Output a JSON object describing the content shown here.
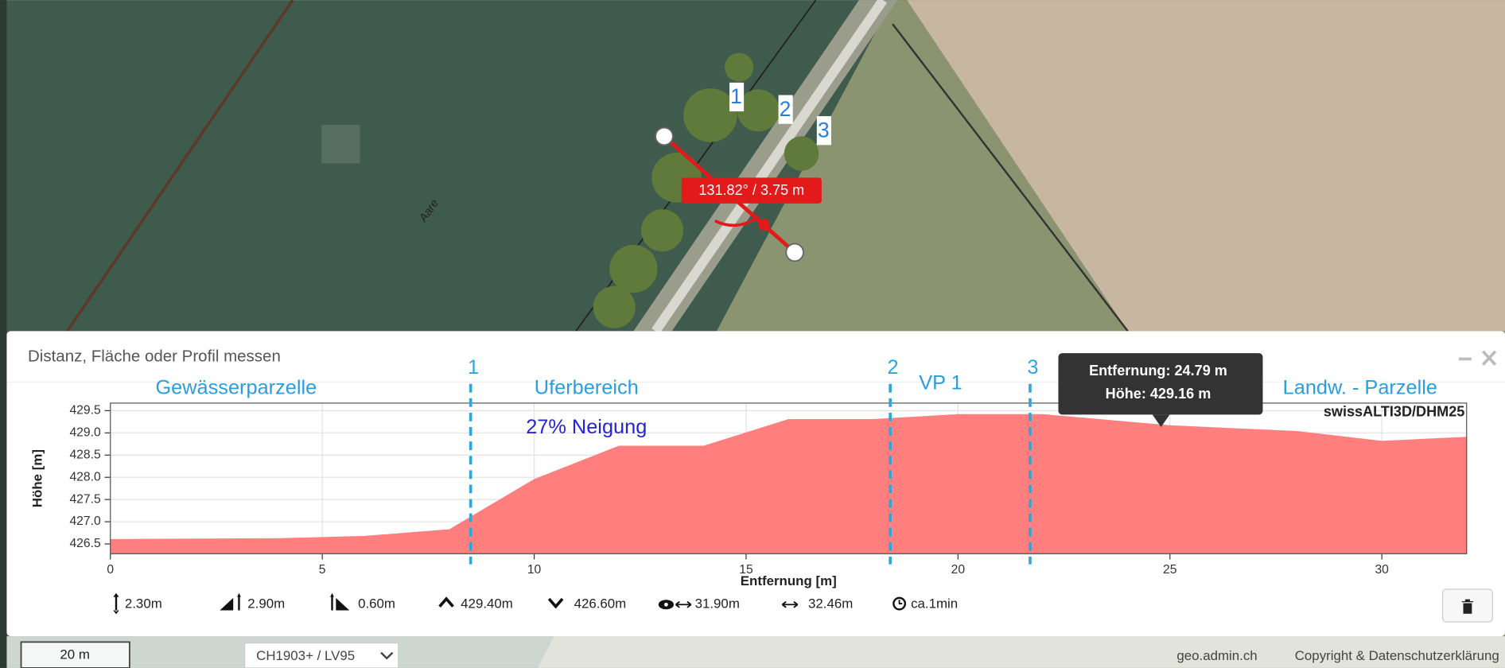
{
  "map": {
    "river_label": "Aare",
    "markers": [
      "1",
      "2",
      "3"
    ],
    "measure_label": "131.82° / 3.75 m"
  },
  "panel": {
    "title": "Distanz, Fläche oder Profil messen"
  },
  "chart_data": {
    "type": "area",
    "x_label": "Entfernung [m]",
    "y_label": "Höhe [m]",
    "source_label": "swissALTI3D/DHM25",
    "color": "#ff7f7f",
    "x": [
      0,
      4,
      6,
      8,
      10,
      12,
      14,
      16,
      18,
      20,
      22,
      25,
      28,
      30,
      32
    ],
    "values": [
      426.6,
      426.62,
      426.67,
      426.82,
      427.95,
      428.7,
      428.7,
      429.3,
      429.3,
      429.41,
      429.41,
      429.16,
      429.03,
      428.81,
      428.9
    ],
    "xlim": [
      0,
      32
    ],
    "xticks": [
      0,
      5,
      10,
      15,
      20,
      25,
      30
    ],
    "ylim": [
      426.28,
      429.67
    ],
    "yticks": [
      426.5,
      {
        "value": 427,
        "label": "427.0"
      },
      427.5,
      {
        "value": 428,
        "label": "428.0"
      },
      428.5,
      {
        "value": 429,
        "label": "429.0"
      },
      429.5
    ],
    "grid": true,
    "markers": [
      {
        "label": "1",
        "x": 8.5
      },
      {
        "label": "2",
        "x": 18.4
      },
      {
        "label": "3",
        "x": 21.7
      }
    ],
    "regions": [
      "Gewässerparzelle",
      "Uferbereich",
      "VP 1",
      "Landw. - Parzelle"
    ],
    "slope_label": "27% Neigung",
    "tooltip": {
      "x": 24.79,
      "lines": [
        "Entfernung: 24.79 m",
        "Höhe: 429.16 m"
      ]
    }
  },
  "stats": [
    "2.30m",
    "2.90m",
    "0.60m",
    "429.40m",
    "426.60m",
    "31.90m",
    "32.46m",
    "ca.1min"
  ],
  "footer": {
    "scale": "20 m",
    "projection": "CH1903+ / LV95",
    "brand": "geo.admin.ch",
    "copyright": "Copyright & Datenschutzerklärung"
  }
}
